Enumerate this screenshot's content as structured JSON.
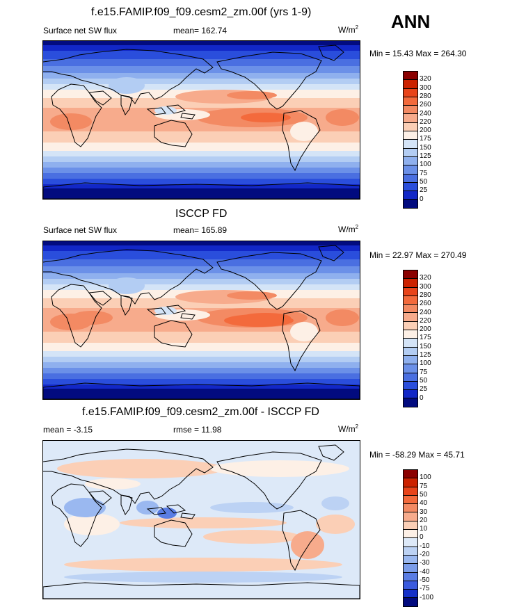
{
  "season": "ANN",
  "panels": [
    {
      "title": "f.e15.FAMIP.f09_f09.cesm2_zm.00f (yrs 1-9)",
      "left_label": "Surface net SW flux",
      "center_label": "mean= 162.74",
      "units_base": "W/m",
      "units_sup": "2",
      "minmax": "Min =  15.43 Max = 264.30",
      "colorbar_labels": [
        "320",
        "300",
        "280",
        "260",
        "240",
        "220",
        "200",
        "175",
        "150",
        "125",
        "100",
        "75",
        "50",
        "25",
        "0"
      ],
      "colorbar_colors": [
        "#8b0000",
        "#cc2200",
        "#e8441a",
        "#f36a3c",
        "#f38a63",
        "#f7ab8c",
        "#fbcfb6",
        "#fdf0e6",
        "#d4e4f7",
        "#b3cdf3",
        "#8fb0ee",
        "#6b90e8",
        "#4a6fe1",
        "#2a4edc",
        "#1227c7",
        "#020b7f"
      ]
    },
    {
      "title": "ISCCP FD",
      "left_label": "Surface net SW flux",
      "center_label": "mean= 165.89",
      "units_base": "W/m",
      "units_sup": "2",
      "minmax": "Min =  22.97 Max = 270.49",
      "colorbar_labels": [
        "320",
        "300",
        "280",
        "260",
        "240",
        "220",
        "200",
        "175",
        "150",
        "125",
        "100",
        "75",
        "50",
        "25",
        "0"
      ],
      "colorbar_colors": [
        "#8b0000",
        "#cc2200",
        "#e8441a",
        "#f36a3c",
        "#f38a63",
        "#f7ab8c",
        "#fbcfb6",
        "#fdf0e6",
        "#d4e4f7",
        "#b3cdf3",
        "#8fb0ee",
        "#6b90e8",
        "#4a6fe1",
        "#2a4edc",
        "#1227c7",
        "#020b7f"
      ]
    },
    {
      "title": "f.e15.FAMIP.f09_f09.cesm2_zm.00f - ISCCP FD",
      "left_label": "mean =  -3.15",
      "center_label": "rmse =  11.98",
      "units_base": "W/m",
      "units_sup": "2",
      "minmax": "Min = -58.29 Max =  45.71",
      "colorbar_labels": [
        "100",
        "75",
        "50",
        "40",
        "30",
        "20",
        "10",
        "0",
        "-10",
        "-20",
        "-30",
        "-40",
        "-50",
        "-75",
        "-100"
      ],
      "colorbar_colors": [
        "#8b0000",
        "#cc2200",
        "#e8441a",
        "#f36a3c",
        "#f38a63",
        "#f7ab8c",
        "#fbcfb6",
        "#fdf0e6",
        "#dde9f8",
        "#bcd2f4",
        "#9ab8f0",
        "#7b9dea",
        "#5a7de4",
        "#3a5ade",
        "#1531c9",
        "#020b7f"
      ]
    }
  ]
}
